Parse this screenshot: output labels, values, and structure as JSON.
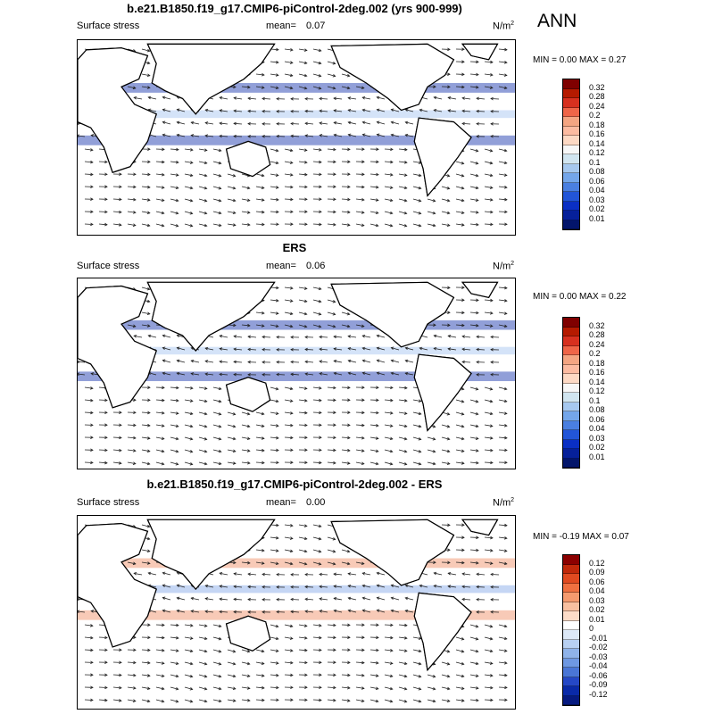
{
  "ann_label": "ANN",
  "panels": [
    {
      "title": "b.e21.B1850.f19_g17.CMIP6-piControl-2deg.002 (yrs 900-999)",
      "left_label": "Surface stress",
      "mean_label": "mean=",
      "mean_value": "0.07",
      "units": "N/m",
      "units_sup": "2",
      "minmax": "MIN =  0.00 MAX =  0.27",
      "colorbar": {
        "levels": [
          "0.32",
          "0.28",
          "0.24",
          "0.2",
          "0.18",
          "0.16",
          "0.14",
          "0.12",
          "0.1",
          "0.08",
          "0.06",
          "0.04",
          "0.03",
          "0.02",
          "0.01"
        ],
        "colors": [
          "#7f0000",
          "#b51a00",
          "#d7301f",
          "#ef6548",
          "#f4a582",
          "#fcbba1",
          "#fdd9c4",
          "#f7f7f7",
          "#d1e5f0",
          "#a6c8ef",
          "#74a6ea",
          "#4a7fe0",
          "#2255d8",
          "#0a2fc4",
          "#06209a",
          "#03156b"
        ]
      }
    },
    {
      "title": "ERS",
      "left_label": "Surface stress",
      "mean_label": "mean=",
      "mean_value": "0.06",
      "units": "N/m",
      "units_sup": "2",
      "minmax": "MIN =  0.00 MAX =  0.22",
      "colorbar": {
        "levels": [
          "0.32",
          "0.28",
          "0.24",
          "0.2",
          "0.18",
          "0.16",
          "0.14",
          "0.12",
          "0.1",
          "0.08",
          "0.06",
          "0.04",
          "0.03",
          "0.02",
          "0.01"
        ],
        "colors": [
          "#7f0000",
          "#b51a00",
          "#d7301f",
          "#ef6548",
          "#f4a582",
          "#fcbba1",
          "#fdd9c4",
          "#f7f7f7",
          "#d1e5f0",
          "#a6c8ef",
          "#74a6ea",
          "#4a7fe0",
          "#2255d8",
          "#0a2fc4",
          "#06209a",
          "#03156b"
        ]
      }
    },
    {
      "title": "b.e21.B1850.f19_g17.CMIP6-piControl-2deg.002 - ERS",
      "left_label": "Surface stress",
      "mean_label": "mean=",
      "mean_value": "0.00",
      "units": "N/m",
      "units_sup": "2",
      "minmax": "MIN =  -0.19 MAX =  0.07",
      "colorbar": {
        "levels": [
          "0.12",
          "0.09",
          "0.06",
          "0.04",
          "0.03",
          "0.02",
          "0.01",
          "0",
          "-0.01",
          "-0.02",
          "-0.03",
          "-0.04",
          "-0.06",
          "-0.09",
          "-0.12"
        ],
        "colors": [
          "#8b0000",
          "#c0280a",
          "#e04a20",
          "#ef7040",
          "#f59a6e",
          "#f9c0a0",
          "#fcdcc8",
          "#ffffff",
          "#dce8f7",
          "#b8d0f2",
          "#8fb3ea",
          "#6e98e2",
          "#4a76d6",
          "#2548c6",
          "#0a2aa8",
          "#061a80"
        ]
      }
    }
  ]
}
